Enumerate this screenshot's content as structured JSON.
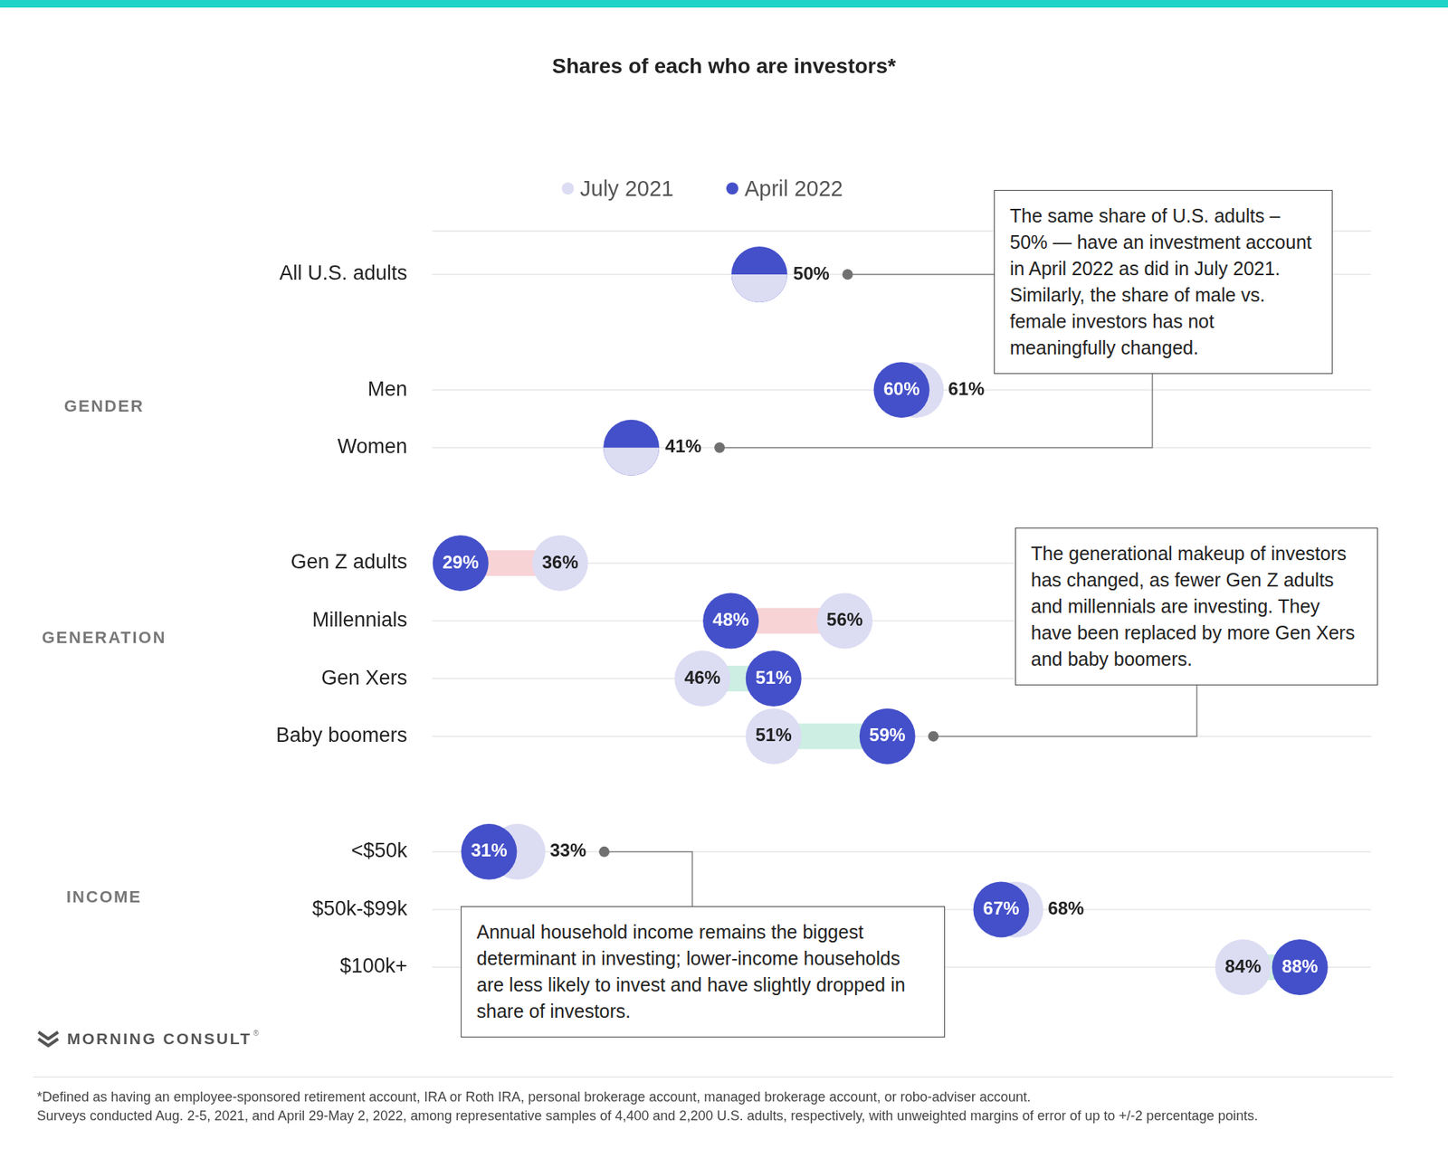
{
  "chart_data": {
    "type": "dumbbell",
    "title": "Shares of each who are investors*",
    "orientation": "horizontal",
    "categories": [
      "All U.S. adults",
      "Men",
      "Women",
      "Gen Z adults",
      "Millennials",
      "Gen Xers",
      "Baby boomers",
      "<$50k",
      "$50k-$99k",
      "$100k+"
    ],
    "groups": [
      {
        "label": "GENDER",
        "categories": [
          "Men",
          "Women"
        ]
      },
      {
        "label": "GENERATION",
        "categories": [
          "Gen Z adults",
          "Millennials",
          "Gen Xers",
          "Baby boomers"
        ]
      },
      {
        "label": "INCOME",
        "categories": [
          "<$50k",
          "$50k-$99k",
          "$100k+"
        ]
      }
    ],
    "series": [
      {
        "name": "July 2021",
        "color": "#dcdcf3",
        "values": [
          50,
          61,
          41,
          36,
          56,
          46,
          51,
          33,
          68,
          84
        ],
        "value_labels": [
          null,
          "61%",
          null,
          "36%",
          "56%",
          "46%",
          "51%",
          "33%",
          "68%",
          "84%"
        ]
      },
      {
        "name": "April 2022",
        "color": "#4450c9",
        "values": [
          50,
          60,
          41,
          29,
          48,
          51,
          59,
          31,
          67,
          88
        ],
        "value_labels": [
          "50%",
          "60%",
          "41%",
          "29%",
          "48%",
          "51%",
          "59%",
          "31%",
          "67%",
          "88%"
        ]
      }
    ],
    "xlim": [
      27,
      93
    ],
    "xticks": [],
    "tick_labels": "y",
    "data_labels": true,
    "grid": true,
    "legend": "top",
    "annotations": [
      {
        "text": "The same share of U.S. adults – 50% — have an investment account in April 2022 as did in July 2021. Similarly, the share of male vs. female investors has not meaningfully changed.",
        "categories": [
          "All U.S. adults",
          "Women"
        ]
      },
      {
        "text": "The generational makeup of investors has changed, as fewer Gen Z adults and millennials are investing. They have been replaced by more Gen Xers and baby boomers.",
        "categories": [
          "Baby boomers"
        ]
      },
      {
        "text": "Annual household income remains the biggest determinant in investing; lower-income households are less likely to invest and have slightly dropped in share of investors.",
        "categories": [
          "<$50k"
        ]
      }
    ]
  },
  "footer": {
    "logo": "MORNING CONSULT",
    "logo_mark": "®",
    "notes": [
      "*Defined as having an employee-sponsored retirement account, IRA or Roth IRA, personal brokerage account, managed brokerage account, or robo-adviser account.",
      "Surveys conducted Aug. 2-5, 2021, and April 29-May 2, 2022, among representative samples of 4,400 and 2,200 U.S. adults, respectively, with unweighted margins of error of up to +/-2 percentage points."
    ]
  }
}
